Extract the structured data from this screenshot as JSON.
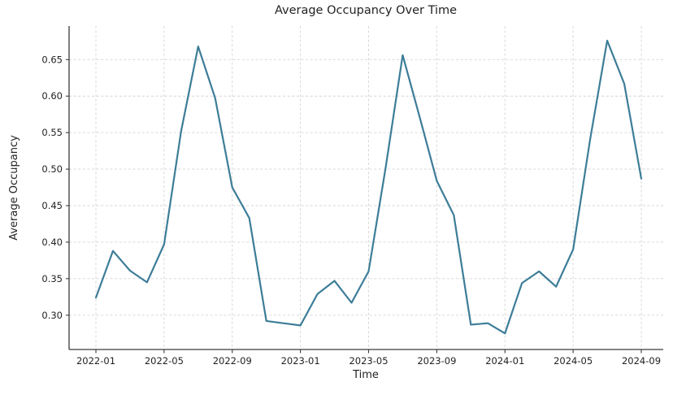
{
  "chart_data": {
    "type": "line",
    "title": "Average Occupancy Over Time",
    "xlabel": "Time",
    "ylabel": "Average Occupancy",
    "x": [
      "2022-01",
      "2022-02",
      "2022-03",
      "2022-04",
      "2022-05",
      "2022-06",
      "2022-07",
      "2022-08",
      "2022-09",
      "2022-10",
      "2022-11",
      "2022-12",
      "2023-01",
      "2023-02",
      "2023-03",
      "2023-04",
      "2023-05",
      "2023-06",
      "2023-07",
      "2023-08",
      "2023-09",
      "2023-10",
      "2023-11",
      "2023-12",
      "2024-01",
      "2024-02",
      "2024-03",
      "2024-04",
      "2024-05",
      "2024-06",
      "2024-07",
      "2024-08",
      "2024-09"
    ],
    "series": [
      {
        "name": "Average Occupancy",
        "values": [
          0.324,
          0.388,
          0.361,
          0.345,
          0.397,
          0.552,
          0.668,
          0.597,
          0.475,
          0.433,
          0.292,
          0.289,
          0.286,
          0.329,
          0.347,
          0.317,
          0.36,
          0.502,
          0.656,
          0.571,
          0.484,
          0.437,
          0.287,
          0.289,
          0.275,
          0.344,
          0.36,
          0.339,
          0.39,
          0.541,
          0.676,
          0.617,
          0.487
        ]
      }
    ],
    "xtick_labels": [
      "2022-01",
      "2022-05",
      "2022-09",
      "2023-01",
      "2023-05",
      "2023-09",
      "2024-01",
      "2024-05",
      "2024-09"
    ],
    "ytick_values": [
      0.3,
      0.35,
      0.4,
      0.45,
      0.5,
      0.55,
      0.6,
      0.65
    ],
    "ytick_labels": [
      "0.30",
      "0.35",
      "0.40",
      "0.45",
      "0.50",
      "0.55",
      "0.60",
      "0.65"
    ],
    "ylim": [
      0.253,
      0.696
    ],
    "grid": true,
    "legend_position": "none",
    "colors": {
      "line": "#3d7d98",
      "grid": "#d4d4d4",
      "spine": "#3b3b3b",
      "text": "#232323"
    }
  }
}
